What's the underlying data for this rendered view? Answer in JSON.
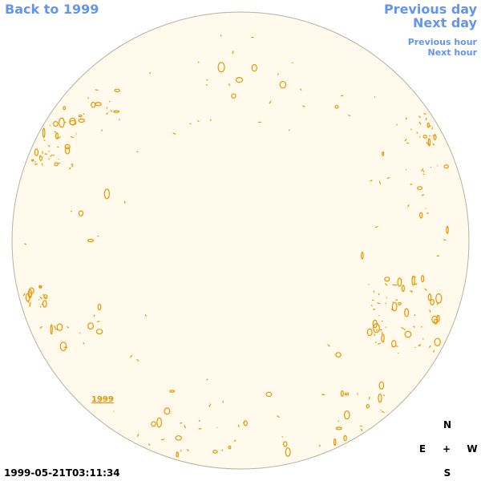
{
  "nav": {
    "back": "Back to 1999",
    "previous_day": "Previous day",
    "next_day": "Next day",
    "previous_hour": "Previous hour",
    "next_hour": "Next hour"
  },
  "disk_label": "1999",
  "compass": {
    "north": "N",
    "east": "E",
    "center": "+",
    "west": "W",
    "south": "S"
  },
  "timestamp": "1999-05-21T03:11:34"
}
